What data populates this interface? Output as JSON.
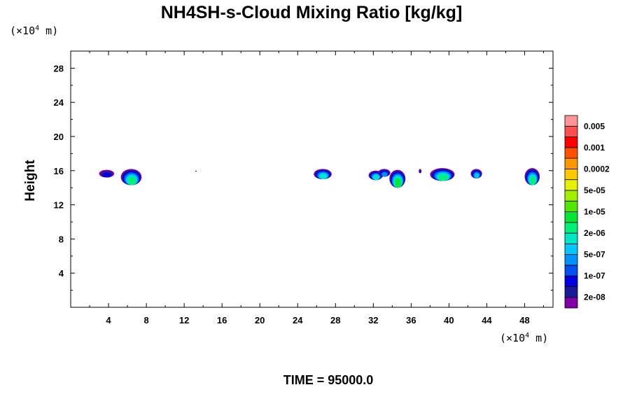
{
  "chart_data": {
    "type": "contour",
    "title": "NH4SH-s-Cloud Mixing Ratio [kg/kg]",
    "ylabel": "Height",
    "x_unit": {
      "prefix": "(×10",
      "exp": "4",
      "suffix": " m)"
    },
    "y_unit": {
      "prefix": "(×10",
      "exp": "4",
      "suffix": " m)"
    },
    "xlim": [
      0,
      51
    ],
    "ylim": [
      0,
      30
    ],
    "x_ticks": [
      4,
      8,
      12,
      16,
      20,
      24,
      28,
      32,
      36,
      40,
      44,
      48
    ],
    "x_tick_labels": [
      "4",
      "8",
      "12",
      "16",
      "20",
      "24",
      "28",
      "32",
      "36",
      "40",
      "44",
      "48"
    ],
    "y_ticks": [
      4,
      8,
      12,
      16,
      20,
      24,
      28
    ],
    "y_tick_labels": [
      "4",
      "8",
      "12",
      "16",
      "20",
      "24",
      "28"
    ],
    "time_label": "TIME = 95000.0",
    "colorbar": {
      "colors": [
        "#7f00a8",
        "#1a1a9a",
        "#0000e0",
        "#0050f0",
        "#0090ff",
        "#00c8ff",
        "#00e6c8",
        "#00f078",
        "#00e632",
        "#50e600",
        "#a0f000",
        "#e6f000",
        "#ffc800",
        "#ff9600",
        "#ff5000",
        "#ff0000",
        "#ff5050",
        "#ff9696"
      ],
      "labels": [
        {
          "text": "2e-08",
          "band": 1
        },
        {
          "text": "1e-07",
          "band": 3
        },
        {
          "text": "5e-07",
          "band": 5
        },
        {
          "text": "2e-06",
          "band": 7
        },
        {
          "text": "1e-05",
          "band": 9
        },
        {
          "text": "5e-05",
          "band": 11
        },
        {
          "text": "0.0002",
          "band": 13
        },
        {
          "text": "0.001",
          "band": 15
        },
        {
          "text": "0.005",
          "band": 17
        }
      ]
    },
    "clouds": [
      {
        "x0": 3.0,
        "x1": 4.6,
        "ybot": 15.2,
        "ytop": 16.1,
        "max_band": 2
      },
      {
        "x0": 5.3,
        "x1": 7.5,
        "ybot": 14.3,
        "ytop": 16.2,
        "max_band": 7
      },
      {
        "x0": 13.2,
        "x1": 13.3,
        "ybot": 15.9,
        "ytop": 16.0,
        "max_band": 1
      },
      {
        "x0": 25.7,
        "x1": 27.6,
        "ybot": 15.0,
        "ytop": 16.2,
        "max_band": 6
      },
      {
        "x0": 31.5,
        "x1": 33.0,
        "ybot": 14.9,
        "ytop": 16.0,
        "max_band": 6
      },
      {
        "x0": 32.5,
        "x1": 33.8,
        "ybot": 15.3,
        "ytop": 16.2,
        "max_band": 4
      },
      {
        "x0": 33.7,
        "x1": 35.4,
        "ybot": 14.0,
        "ytop": 16.1,
        "max_band": 8
      },
      {
        "x0": 36.8,
        "x1": 37.1,
        "ybot": 15.7,
        "ytop": 16.2,
        "max_band": 1
      },
      {
        "x0": 38.0,
        "x1": 40.6,
        "ybot": 14.8,
        "ytop": 16.3,
        "max_band": 7
      },
      {
        "x0": 42.3,
        "x1": 43.5,
        "ybot": 15.1,
        "ytop": 16.2,
        "max_band": 5
      },
      {
        "x0": 48.0,
        "x1": 49.6,
        "ybot": 14.3,
        "ytop": 16.3,
        "max_band": 7
      }
    ]
  }
}
